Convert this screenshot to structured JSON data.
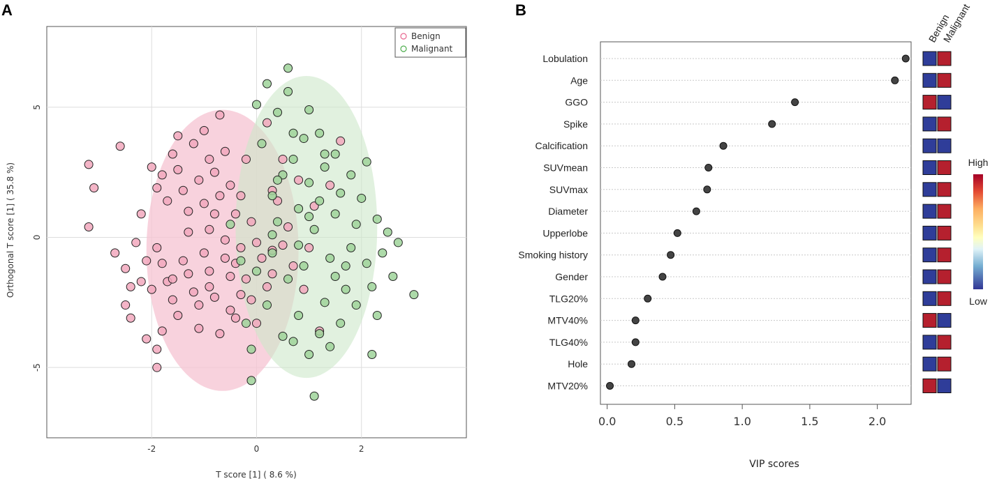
{
  "panels": {
    "a": "A",
    "b": "B"
  },
  "colors": {
    "benign": "#e8668f",
    "benign_fill": "#f2a8bd",
    "benign_ellipse": "#f5c3d1",
    "malignant": "#4cad4c",
    "malignant_fill": "#9fd49a",
    "malignant_ellipse": "#cde8c9",
    "high": "#a50026",
    "low": "#313695",
    "heat_red": "#b5202e",
    "heat_blue": "#2f3d99"
  },
  "chart_data": [
    {
      "type": "scatter",
      "title": "",
      "xlabel": "T score [1] ( 8.6 %)",
      "ylabel": "Orthogonal T score [1] ( 35.8 %)",
      "xlim": [
        -4.0,
        4.0
      ],
      "ylim": [
        -7.7,
        8.1
      ],
      "x_ticks": [
        -2,
        0,
        2
      ],
      "y_ticks": [
        5,
        0,
        -5
      ],
      "grid": true,
      "legend_position": "top-right",
      "legend": [
        "Benign",
        "Malignant"
      ],
      "ellipses": [
        {
          "series": "Benign",
          "cx": -0.65,
          "cy": -0.5,
          "rx": 1.45,
          "ry": 5.4
        },
        {
          "series": "Malignant",
          "cx": 0.95,
          "cy": 0.4,
          "rx": 1.35,
          "ry": 5.8
        }
      ],
      "series": [
        {
          "name": "Benign",
          "points": [
            [
              -3.2,
              2.8
            ],
            [
              -3.1,
              1.9
            ],
            [
              -3.2,
              0.4
            ],
            [
              -2.6,
              3.5
            ],
            [
              -2.7,
              -0.6
            ],
            [
              -2.5,
              -1.2
            ],
            [
              -2.4,
              -1.9
            ],
            [
              -2.5,
              -2.6
            ],
            [
              -2.4,
              -3.1
            ],
            [
              -2.2,
              -1.7
            ],
            [
              -2.1,
              -0.9
            ],
            [
              -2.0,
              -2.0
            ],
            [
              -2.1,
              -3.9
            ],
            [
              -1.9,
              -4.3
            ],
            [
              -1.9,
              -5.0
            ],
            [
              -1.8,
              -3.6
            ],
            [
              -2.0,
              2.7
            ],
            [
              -1.9,
              1.9
            ],
            [
              -1.8,
              2.4
            ],
            [
              -1.7,
              1.4
            ],
            [
              -1.6,
              3.2
            ],
            [
              -1.5,
              3.9
            ],
            [
              -1.5,
              2.6
            ],
            [
              -1.4,
              1.8
            ],
            [
              -1.3,
              1.0
            ],
            [
              -1.2,
              3.6
            ],
            [
              -1.1,
              2.2
            ],
            [
              -1.0,
              4.1
            ],
            [
              -1.0,
              1.3
            ],
            [
              -0.9,
              3.0
            ],
            [
              -0.9,
              0.3
            ],
            [
              -0.8,
              2.5
            ],
            [
              -0.7,
              4.7
            ],
            [
              -0.7,
              1.6
            ],
            [
              -0.6,
              3.3
            ],
            [
              -0.5,
              2.0
            ],
            [
              -0.4,
              0.9
            ],
            [
              -0.3,
              1.6
            ],
            [
              -0.2,
              3.0
            ],
            [
              -0.1,
              0.6
            ],
            [
              -1.9,
              -0.4
            ],
            [
              -1.8,
              -1.0
            ],
            [
              -1.7,
              -1.7
            ],
            [
              -1.6,
              -2.4
            ],
            [
              -1.5,
              -3.0
            ],
            [
              -1.4,
              -0.9
            ],
            [
              -1.3,
              -1.4
            ],
            [
              -1.2,
              -2.1
            ],
            [
              -1.1,
              -2.6
            ],
            [
              -1.0,
              -0.6
            ],
            [
              -0.9,
              -1.3
            ],
            [
              -0.9,
              -1.9
            ],
            [
              -0.8,
              -2.3
            ],
            [
              -0.7,
              -3.7
            ],
            [
              -0.6,
              -0.8
            ],
            [
              -0.5,
              -1.5
            ],
            [
              -0.5,
              -2.8
            ],
            [
              -0.4,
              -1.0
            ],
            [
              -0.3,
              -2.2
            ],
            [
              -0.2,
              -1.6
            ],
            [
              -0.1,
              -2.4
            ],
            [
              0.0,
              -3.3
            ],
            [
              0.1,
              -0.8
            ],
            [
              0.2,
              -1.9
            ],
            [
              0.3,
              -0.5
            ],
            [
              0.4,
              1.4
            ],
            [
              0.5,
              3.0
            ],
            [
              0.6,
              0.4
            ],
            [
              0.7,
              -1.1
            ],
            [
              0.8,
              2.2
            ],
            [
              0.9,
              -2.0
            ],
            [
              1.0,
              -0.4
            ],
            [
              1.1,
              1.2
            ],
            [
              1.2,
              -3.6
            ],
            [
              1.4,
              2.0
            ],
            [
              1.6,
              3.7
            ],
            [
              0.2,
              4.4
            ],
            [
              0.3,
              1.8
            ],
            [
              -2.3,
              -0.2
            ],
            [
              -2.2,
              0.9
            ],
            [
              -1.3,
              0.2
            ],
            [
              -0.6,
              -0.1
            ],
            [
              -0.3,
              -0.4
            ],
            [
              0.0,
              -0.2
            ],
            [
              0.3,
              -1.4
            ],
            [
              0.5,
              -0.3
            ],
            [
              -1.6,
              -1.6
            ],
            [
              -0.8,
              0.9
            ],
            [
              -1.1,
              -3.5
            ],
            [
              -0.4,
              -3.1
            ]
          ]
        },
        {
          "name": "Malignant",
          "points": [
            [
              0.6,
              6.5
            ],
            [
              0.2,
              5.9
            ],
            [
              0.6,
              5.6
            ],
            [
              0.0,
              5.1
            ],
            [
              0.4,
              4.8
            ],
            [
              1.0,
              4.9
            ],
            [
              1.2,
              4.0
            ],
            [
              0.9,
              3.8
            ],
            [
              1.5,
              3.2
            ],
            [
              0.7,
              3.0
            ],
            [
              1.3,
              2.7
            ],
            [
              0.5,
              2.4
            ],
            [
              1.8,
              2.4
            ],
            [
              1.0,
              2.1
            ],
            [
              1.6,
              1.7
            ],
            [
              0.3,
              1.6
            ],
            [
              1.2,
              1.4
            ],
            [
              0.8,
              1.1
            ],
            [
              2.1,
              2.9
            ],
            [
              1.5,
              0.9
            ],
            [
              0.4,
              0.6
            ],
            [
              1.9,
              0.5
            ],
            [
              1.1,
              0.3
            ],
            [
              2.3,
              0.7
            ],
            [
              2.7,
              -0.2
            ],
            [
              2.4,
              -0.6
            ],
            [
              2.1,
              -1.0
            ],
            [
              1.8,
              -0.4
            ],
            [
              1.4,
              -0.8
            ],
            [
              0.9,
              -1.1
            ],
            [
              2.6,
              -1.5
            ],
            [
              2.2,
              -1.9
            ],
            [
              1.7,
              -2.0
            ],
            [
              1.3,
              -2.5
            ],
            [
              0.8,
              -3.0
            ],
            [
              2.3,
              -3.0
            ],
            [
              1.6,
              -3.3
            ],
            [
              1.2,
              -3.7
            ],
            [
              0.7,
              -4.0
            ],
            [
              1.0,
              -4.5
            ],
            [
              2.2,
              -4.5
            ],
            [
              1.4,
              -4.2
            ],
            [
              0.5,
              -3.8
            ],
            [
              3.0,
              -2.2
            ],
            [
              -0.2,
              -3.3
            ],
            [
              -0.1,
              -4.3
            ],
            [
              -0.1,
              -5.5
            ],
            [
              1.1,
              -6.1
            ],
            [
              0.0,
              -1.3
            ],
            [
              0.3,
              0.1
            ],
            [
              0.6,
              -1.6
            ],
            [
              1.7,
              -1.1
            ],
            [
              0.2,
              -2.6
            ],
            [
              0.4,
              2.2
            ],
            [
              1.9,
              -2.6
            ],
            [
              1.0,
              0.8
            ],
            [
              -0.3,
              -0.9
            ],
            [
              -0.5,
              0.5
            ],
            [
              0.8,
              -0.3
            ],
            [
              1.5,
              -1.5
            ],
            [
              2.0,
              1.5
            ],
            [
              2.5,
              0.2
            ],
            [
              0.1,
              3.6
            ],
            [
              1.3,
              3.2
            ],
            [
              0.7,
              4.0
            ],
            [
              0.3,
              -0.6
            ]
          ]
        }
      ]
    },
    {
      "type": "dot",
      "title": "",
      "xlabel": "VIP scores",
      "xlim": [
        -0.05,
        2.25
      ],
      "x_ticks": [
        "0.0",
        "0.5",
        "1.0",
        "1.5",
        "2.0"
      ],
      "x_tick_values": [
        0.0,
        0.5,
        1.0,
        1.5,
        2.0
      ],
      "heatmap_columns": [
        "Benign",
        "Malignant"
      ],
      "scale_labels": {
        "high": "High",
        "low": "Low"
      },
      "features": [
        {
          "name": "Lobulation",
          "vip": 2.21,
          "benign": "low",
          "malignant": "high"
        },
        {
          "name": "Age",
          "vip": 2.13,
          "benign": "low",
          "malignant": "high"
        },
        {
          "name": "GGO",
          "vip": 1.39,
          "benign": "high",
          "malignant": "low"
        },
        {
          "name": "Spike",
          "vip": 1.22,
          "benign": "low",
          "malignant": "high"
        },
        {
          "name": "Calcification",
          "vip": 0.86,
          "benign": "low",
          "malignant": "low"
        },
        {
          "name": "SUVmean",
          "vip": 0.75,
          "benign": "low",
          "malignant": "high"
        },
        {
          "name": "SUVmax",
          "vip": 0.74,
          "benign": "low",
          "malignant": "high"
        },
        {
          "name": "Diameter",
          "vip": 0.66,
          "benign": "low",
          "malignant": "high"
        },
        {
          "name": "Upperlobe",
          "vip": 0.52,
          "benign": "low",
          "malignant": "high"
        },
        {
          "name": "Smoking history",
          "vip": 0.47,
          "benign": "low",
          "malignant": "high"
        },
        {
          "name": "Gender",
          "vip": 0.41,
          "benign": "low",
          "malignant": "high"
        },
        {
          "name": "TLG20%",
          "vip": 0.3,
          "benign": "low",
          "malignant": "high"
        },
        {
          "name": "MTV40%",
          "vip": 0.21,
          "benign": "high",
          "malignant": "low"
        },
        {
          "name": "TLG40%",
          "vip": 0.21,
          "benign": "low",
          "malignant": "high"
        },
        {
          "name": "Hole",
          "vip": 0.18,
          "benign": "low",
          "malignant": "high"
        },
        {
          "name": "MTV20%",
          "vip": 0.02,
          "benign": "high",
          "malignant": "low"
        }
      ]
    }
  ]
}
